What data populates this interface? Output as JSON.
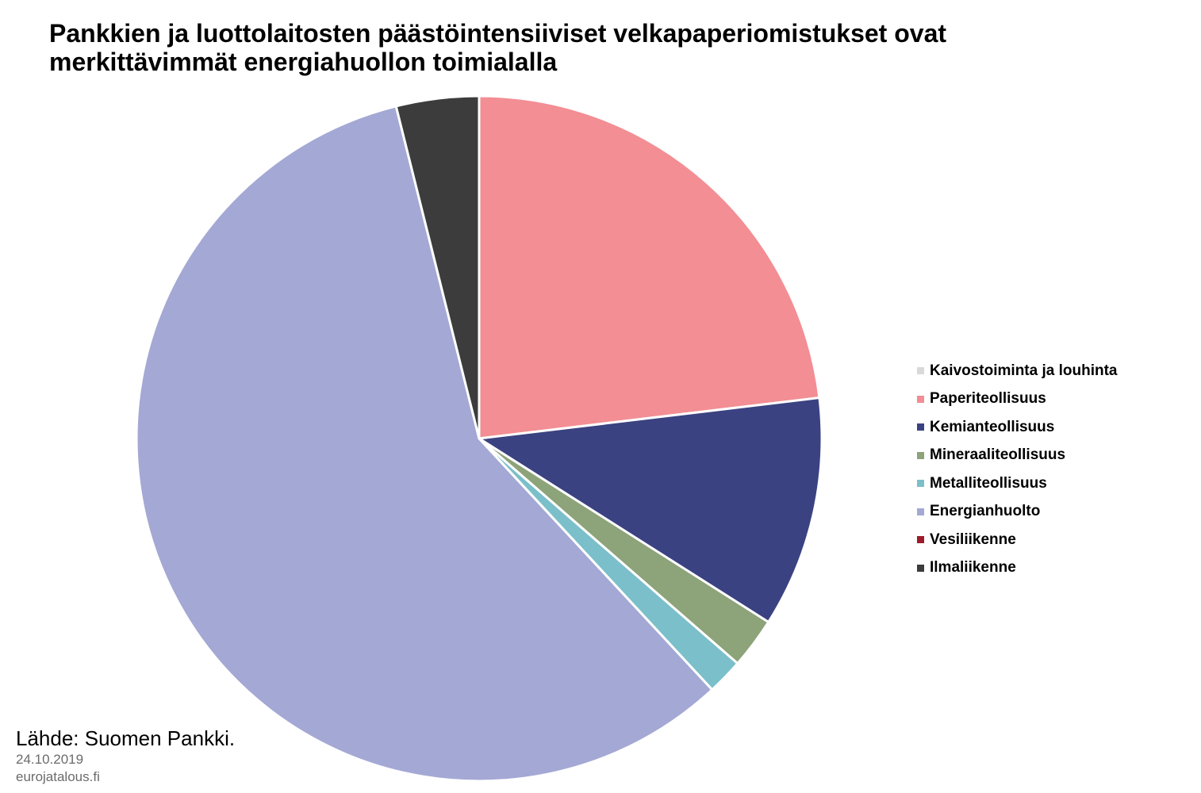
{
  "chart_data": {
    "type": "pie",
    "title": "Pankkien ja luottolaitosten päästöintensiiviset velkapaperiomistukset ovat merkittävimmät energiahuollon toimialalla",
    "legend_position": "right",
    "slices": [
      {
        "label": "Kaivostoiminta ja louhinta",
        "value": 0.0,
        "color": "#d9d9d9"
      },
      {
        "label": "Paperiteollisuus",
        "value": 23.1,
        "color": "#f28e94"
      },
      {
        "label": "Kemianteollisuus",
        "value": 10.9,
        "color": "#3b4281"
      },
      {
        "label": "Mineraaliteollisuus",
        "value": 2.4,
        "color": "#8da37a"
      },
      {
        "label": "Metalliteollisuus",
        "value": 1.7,
        "color": "#7bbfca"
      },
      {
        "label": "Energianhuolto",
        "value": 58.0,
        "color": "#a4a8d4"
      },
      {
        "label": "Vesiliikenne",
        "value": 0.0,
        "color": "#9e1b2c"
      },
      {
        "label": "Ilmaliikenne",
        "value": 3.9,
        "color": "#3c3c3c"
      }
    ]
  },
  "footer": {
    "source": "Lähde: Suomen Pankki.",
    "date": "24.10.2019",
    "site": "eurojatalous.fi"
  }
}
